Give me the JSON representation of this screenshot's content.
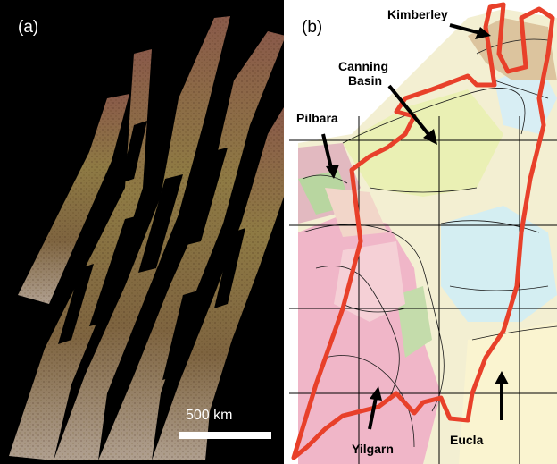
{
  "panels": {
    "a": {
      "label": "(a)",
      "scale_bar_label": "500 km"
    },
    "b": {
      "label": "(b)",
      "regions": {
        "kimberley": "Kimberley",
        "canning_line1": "Canning",
        "canning_line2": "Basin",
        "pilbara": "Pilbara",
        "yilgarn": "Yilgarn",
        "eucla": "Eucla"
      },
      "outline_color": "#e8402a"
    }
  }
}
